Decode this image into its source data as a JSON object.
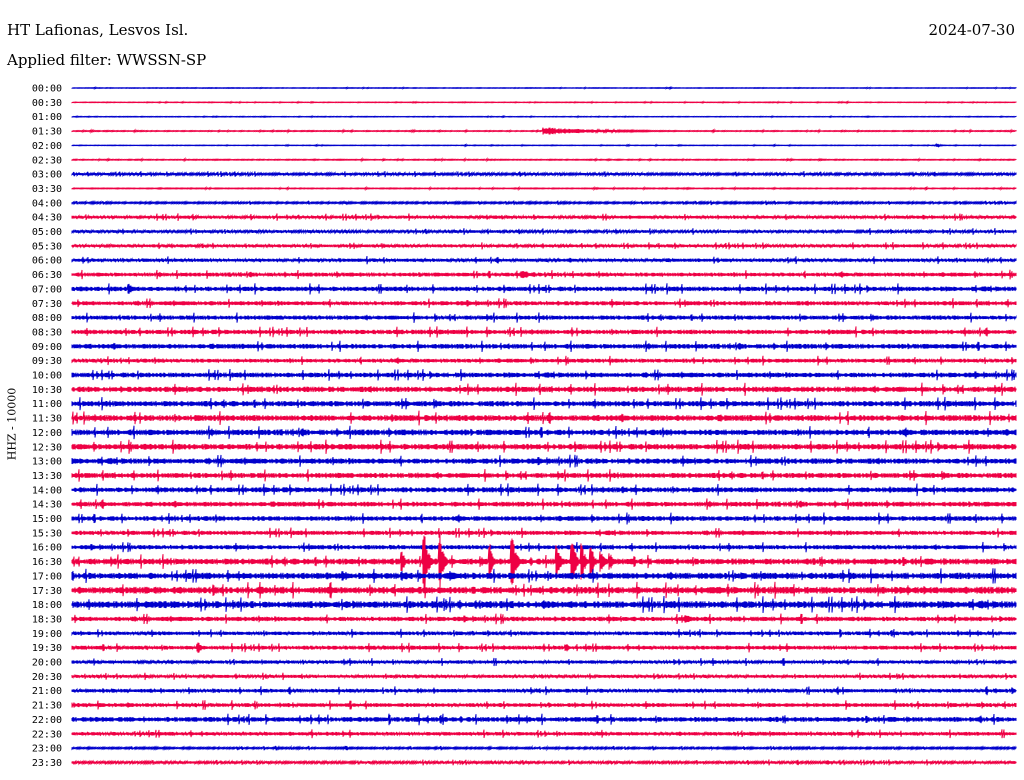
{
  "header": {
    "station": "HT Lafionas, Lesvos Isl.",
    "date": "2024-07-30",
    "filter": "Applied filter: WWSSN-SP"
  },
  "chart_data": {
    "type": "line",
    "title": "HT Lafionas, Lesvos Isl.",
    "subtitle": "Applied filter: WWSSN-SP",
    "ylabel": "HHZ - 10000",
    "xlabel": "",
    "colors": [
      "#0000cc",
      "#ee0044"
    ],
    "row_times": [
      "00:00",
      "00:30",
      "01:00",
      "01:30",
      "02:00",
      "02:30",
      "03:00",
      "03:30",
      "04:00",
      "04:30",
      "05:00",
      "05:30",
      "06:00",
      "06:30",
      "07:00",
      "07:30",
      "08:00",
      "08:30",
      "09:00",
      "09:30",
      "10:00",
      "10:30",
      "11:00",
      "11:30",
      "12:00",
      "12:30",
      "13:00",
      "13:30",
      "14:00",
      "14:30",
      "15:00",
      "15:30",
      "16:00",
      "16:30",
      "17:00",
      "17:30",
      "18:00",
      "18:30",
      "19:00",
      "19:30",
      "20:00",
      "20:30",
      "21:00",
      "21:30",
      "22:00",
      "22:30",
      "23:00",
      "23:30"
    ],
    "noise_level": [
      0.2,
      0.2,
      0.2,
      0.3,
      0.2,
      0.3,
      0.8,
      0.3,
      0.6,
      1.0,
      0.9,
      1.0,
      1.1,
      1.3,
      1.5,
      1.4,
      1.4,
      1.5,
      1.6,
      1.3,
      1.6,
      1.8,
      1.8,
      2.0,
      1.9,
      1.9,
      1.8,
      1.7,
      1.7,
      1.6,
      1.6,
      1.4,
      1.4,
      2.0,
      2.1,
      2.3,
      2.3,
      1.5,
      1.2,
      1.3,
      1.1,
      1.0,
      1.2,
      1.3,
      1.6,
      1.2,
      0.6,
      0.8
    ],
    "events": [
      {
        "row": "01:30",
        "minute": 15.0,
        "amplitude": 4,
        "duration": 5.0
      },
      {
        "row": "02:00",
        "minute": 27.5,
        "amplitude": 2,
        "duration": 0.3
      },
      {
        "row": "06:30",
        "minute": 14.3,
        "amplitude": 6,
        "duration": 0.7
      },
      {
        "row": "07:00",
        "minute": 1.8,
        "amplitude": 7,
        "duration": 0.4
      },
      {
        "row": "14:00",
        "minute": 17.5,
        "amplitude": 4,
        "duration": 0.6
      },
      {
        "row": "16:30",
        "minute": 11.2,
        "amplitude": 40,
        "duration": 0.3
      },
      {
        "row": "16:30",
        "minute": 11.7,
        "amplitude": 28,
        "duration": 0.3
      },
      {
        "row": "16:30",
        "minute": 10.5,
        "amplitude": 12,
        "duration": 0.2
      },
      {
        "row": "16:30",
        "minute": 13.3,
        "amplitude": 18,
        "duration": 0.2
      },
      {
        "row": "16:30",
        "minute": 14.0,
        "amplitude": 35,
        "duration": 0.3
      },
      {
        "row": "16:30",
        "minute": 15.4,
        "amplitude": 24,
        "duration": 0.3
      },
      {
        "row": "16:30",
        "minute": 15.9,
        "amplitude": 32,
        "duration": 0.3
      },
      {
        "row": "16:30",
        "minute": 16.2,
        "amplitude": 22,
        "duration": 0.3
      },
      {
        "row": "16:30",
        "minute": 16.5,
        "amplitude": 18,
        "duration": 0.3
      },
      {
        "row": "16:30",
        "minute": 16.8,
        "amplitude": 14,
        "duration": 0.3
      },
      {
        "row": "16:30",
        "minute": 17.1,
        "amplitude": 10,
        "duration": 0.3
      },
      {
        "row": "17:00",
        "minute": 8.6,
        "amplitude": 6,
        "duration": 0.8
      },
      {
        "row": "17:00",
        "minute": 10.5,
        "amplitude": 5,
        "duration": 1.0
      },
      {
        "row": "17:00",
        "minute": 12.0,
        "amplitude": 5,
        "duration": 1.0
      },
      {
        "row": "17:30",
        "minute": 4.5,
        "amplitude": 7,
        "duration": 0.4
      },
      {
        "row": "18:00",
        "minute": 15.0,
        "amplitude": 5,
        "duration": 1.5
      },
      {
        "row": "18:30",
        "minute": 19.5,
        "amplitude": 4,
        "duration": 1.0
      },
      {
        "row": "19:30",
        "minute": 4.0,
        "amplitude": 6,
        "duration": 0.5
      },
      {
        "row": "19:30",
        "minute": 15.7,
        "amplitude": 5,
        "duration": 0.3
      },
      {
        "row": "23:30",
        "minute": 24.0,
        "amplitude": 3,
        "duration": 0.5
      }
    ]
  }
}
